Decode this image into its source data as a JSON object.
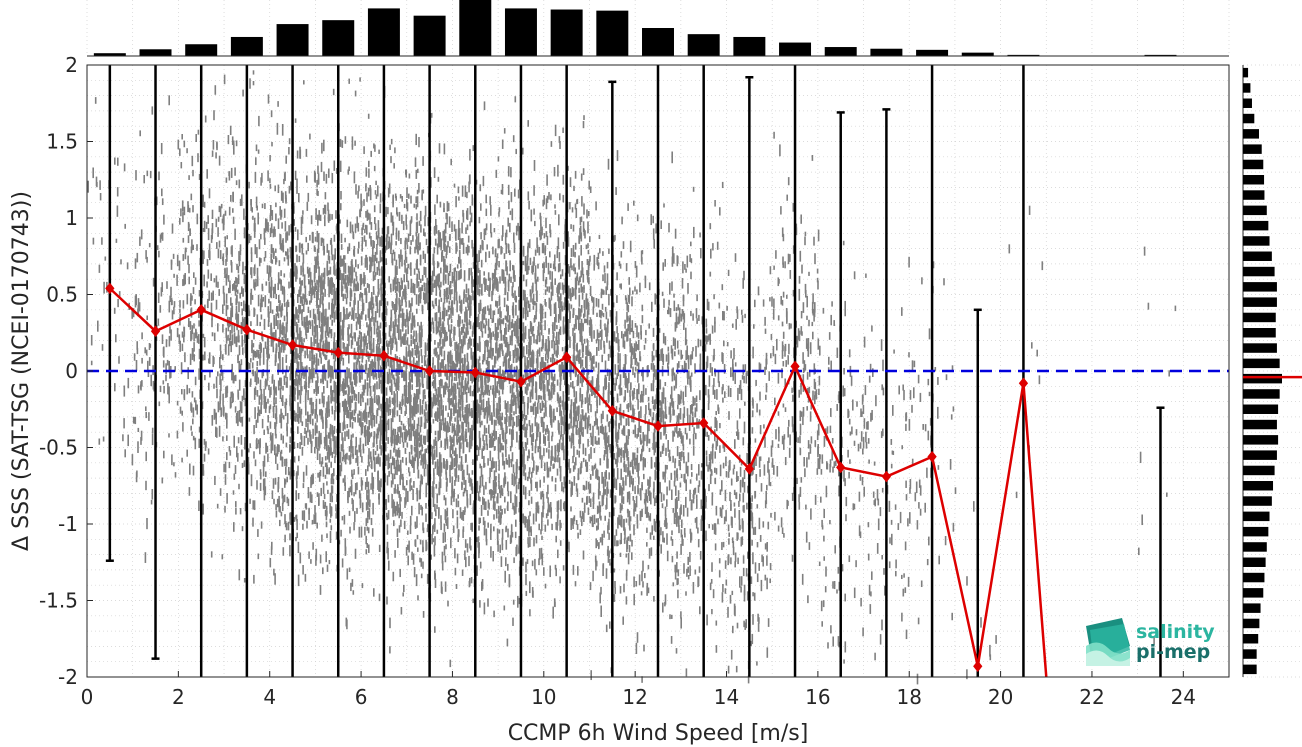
{
  "chart_data": {
    "type": "line",
    "xlabel": "CCMP 6h Wind Speed [m/s]",
    "ylabel": "Δ SSS (SAT-TSG (NCEI-0170743))",
    "xlim": [
      0,
      25
    ],
    "ylim": [
      -2,
      2
    ],
    "xticks": [
      0,
      2,
      4,
      6,
      8,
      10,
      12,
      14,
      16,
      18,
      20,
      22,
      24
    ],
    "yticks": [
      -2,
      -1.5,
      -1,
      -0.5,
      0,
      0.5,
      1,
      1.5,
      2
    ],
    "grid": true,
    "reference_line": {
      "y": 0,
      "color": "#0000dd",
      "style": "dashed"
    },
    "series": [
      {
        "color": "#dd0000",
        "marker": "diamond",
        "x": [
          0.5,
          1.5,
          2.5,
          3.5,
          4.5,
          5.5,
          6.5,
          7.5,
          8.5,
          9.5,
          10.5,
          11.5,
          12.5,
          13.5,
          14.5,
          15.5,
          16.5,
          17.5,
          18.5,
          19.5,
          20.5
        ],
        "y": [
          0.54,
          0.26,
          0.4,
          0.27,
          0.17,
          0.12,
          0.1,
          0.0,
          -0.01,
          -0.07,
          0.09,
          -0.26,
          -0.36,
          -0.34,
          -0.64,
          0.03,
          -0.63,
          -0.69,
          -0.56,
          -1.93,
          -0.08
        ]
      }
    ],
    "red_line_tail": {
      "x": [
        20.5,
        21.0
      ],
      "y": [
        -0.08,
        -2.0
      ]
    },
    "error_bars": [
      {
        "x": 0.5,
        "low": -1.24,
        "high": 2.0
      },
      {
        "x": 1.5,
        "low": -1.88,
        "high": 2.0
      },
      {
        "x": 2.5,
        "low": -2.0,
        "high": 2.0
      },
      {
        "x": 3.5,
        "low": -2.0,
        "high": 2.0
      },
      {
        "x": 4.5,
        "low": -2.0,
        "high": 2.0
      },
      {
        "x": 5.5,
        "low": -2.0,
        "high": 2.0
      },
      {
        "x": 6.5,
        "low": -2.0,
        "high": 2.0
      },
      {
        "x": 7.5,
        "low": -2.0,
        "high": 2.0
      },
      {
        "x": 8.5,
        "low": -2.0,
        "high": 2.0
      },
      {
        "x": 9.5,
        "low": -2.0,
        "high": 2.0
      },
      {
        "x": 10.5,
        "low": -2.0,
        "high": 2.0
      },
      {
        "x": 11.5,
        "low": -2.0,
        "high": 1.89
      },
      {
        "x": 12.5,
        "low": -2.0,
        "high": 2.0
      },
      {
        "x": 13.5,
        "low": -2.0,
        "high": 2.0
      },
      {
        "x": 14.5,
        "low": -2.0,
        "high": 1.92
      },
      {
        "x": 15.5,
        "low": -2.0,
        "high": 2.0
      },
      {
        "x": 16.5,
        "low": -2.0,
        "high": 1.69
      },
      {
        "x": 17.5,
        "low": -2.0,
        "high": 1.71
      },
      {
        "x": 18.5,
        "low": -2.0,
        "high": 2.0
      },
      {
        "x": 19.5,
        "low": -2.0,
        "high": 0.4
      },
      {
        "x": 20.5,
        "low": -2.0,
        "high": 2.0
      },
      {
        "x": 23.5,
        "low": -2.0,
        "high": -0.24
      }
    ],
    "top_histogram": {
      "x": [
        0.5,
        1.5,
        2.5,
        3.5,
        4.5,
        5.5,
        6.5,
        7.5,
        8.5,
        9.5,
        10.5,
        11.5,
        12.5,
        13.5,
        14.5,
        15.5,
        16.5,
        17.5,
        18.5,
        19.5,
        20.5,
        21.5,
        22.5,
        23.5
      ],
      "values": [
        0.05,
        0.12,
        0.21,
        0.34,
        0.57,
        0.64,
        0.85,
        0.72,
        1.0,
        0.85,
        0.83,
        0.81,
        0.5,
        0.39,
        0.34,
        0.24,
        0.16,
        0.13,
        0.11,
        0.06,
        0.02,
        0.0,
        0.0,
        0.02
      ]
    },
    "right_histogram": {
      "y": [
        1.95,
        1.85,
        1.75,
        1.65,
        1.55,
        1.45,
        1.35,
        1.25,
        1.15,
        1.05,
        0.95,
        0.85,
        0.75,
        0.65,
        0.55,
        0.45,
        0.35,
        0.25,
        0.15,
        0.05,
        -0.05,
        -0.15,
        -0.25,
        -0.35,
        -0.45,
        -0.55,
        -0.65,
        -0.75,
        -0.85,
        -0.95,
        -1.05,
        -1.15,
        -1.25,
        -1.35,
        -1.45,
        -1.55,
        -1.65,
        -1.75,
        -1.85,
        -1.95
      ],
      "values": [
        0.13,
        0.19,
        0.23,
        0.29,
        0.41,
        0.48,
        0.52,
        0.54,
        0.55,
        0.61,
        0.65,
        0.68,
        0.74,
        0.81,
        0.87,
        0.87,
        0.84,
        0.84,
        0.87,
        0.94,
        1.0,
        0.94,
        0.9,
        0.87,
        0.9,
        0.87,
        0.81,
        0.77,
        0.74,
        0.68,
        0.65,
        0.61,
        0.58,
        0.55,
        0.52,
        0.45,
        0.42,
        0.39,
        0.35,
        0.35
      ]
    },
    "median_marker": {
      "y": -0.04,
      "color": "#dd0000"
    },
    "scatter": {
      "color": "#7f7f7f",
      "note_density": [
        0.05,
        0.15,
        0.3,
        0.5,
        0.75,
        0.9,
        1.0,
        1.0,
        0.95,
        0.9,
        0.8,
        0.65,
        0.5,
        0.35,
        0.28,
        0.22,
        0.14,
        0.1,
        0.06,
        0.03,
        0.01,
        0.0,
        0.0,
        0.01,
        0.0
      ]
    }
  },
  "logo": {
    "line1": "salinity",
    "line2": "pi-mep",
    "color_primary": "#2bb5a0",
    "color_secondary": "#1a6f6a"
  }
}
